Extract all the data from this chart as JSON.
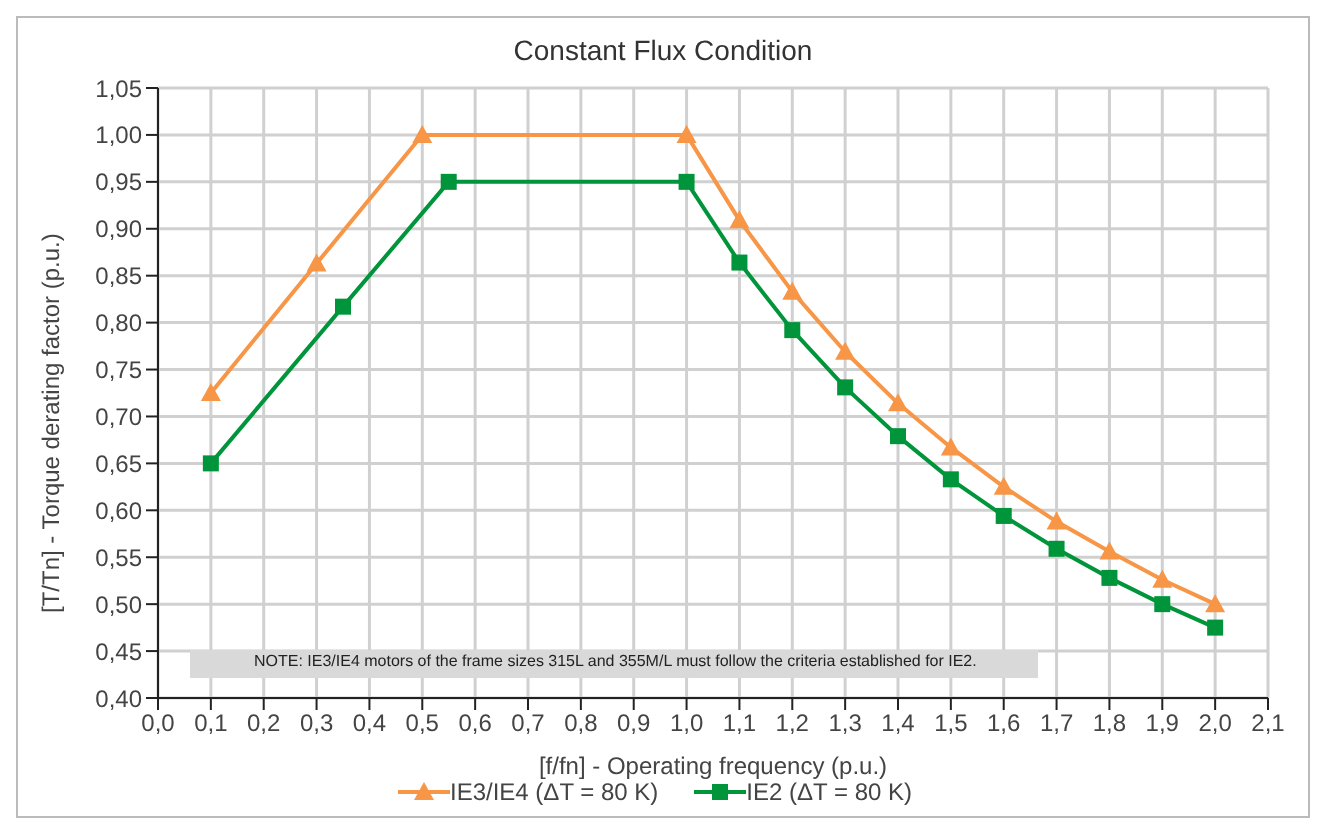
{
  "chart_data": {
    "type": "line",
    "title": "Constant Flux Condition",
    "xlabel": "[f/fn] - Operating frequency (p.u.)",
    "ylabel": "[T/Tn] - Torque derating factor (p.u.)",
    "annotations": [
      "NOTE: IE3/IE4 motors of the frame sizes 315L and 355M/L must follow the criteria established for IE2."
    ],
    "series": [
      {
        "name": "IE3/IE4 (ΔT = 80 K)",
        "color": "#f79646",
        "marker": "triangle",
        "x": [
          0.1,
          0.3,
          0.5,
          1.0,
          1.1,
          1.2,
          1.3,
          1.4,
          1.5,
          1.6,
          1.7,
          1.8,
          1.9,
          2.0
        ],
        "values": [
          0.725,
          0.863,
          1.0,
          1.0,
          0.909,
          0.833,
          0.769,
          0.714,
          0.667,
          0.625,
          0.588,
          0.556,
          0.526,
          0.5
        ]
      },
      {
        "name": "IE2 (ΔT = 80 K)",
        "color": "#00953a",
        "marker": "square",
        "x": [
          0.1,
          0.35,
          0.55,
          1.0,
          1.1,
          1.2,
          1.3,
          1.4,
          1.5,
          1.6,
          1.7,
          1.8,
          1.9,
          2.0
        ],
        "values": [
          0.65,
          0.817,
          0.95,
          0.95,
          0.864,
          0.792,
          0.731,
          0.679,
          0.633,
          0.594,
          0.559,
          0.528,
          0.5,
          0.475
        ]
      }
    ],
    "xlim": [
      0,
      2.1
    ],
    "xticks": [
      {
        "value": 0,
        "label": "0,0"
      },
      {
        "value": 0.1,
        "label": "0,1"
      },
      {
        "value": 0.2,
        "label": "0,2"
      },
      {
        "value": 0.3,
        "label": "0,3"
      },
      {
        "value": 0.4,
        "label": "0,4"
      },
      {
        "value": 0.5,
        "label": "0,5"
      },
      {
        "value": 0.6,
        "label": "0,6"
      },
      {
        "value": 0.7,
        "label": "0,7"
      },
      {
        "value": 0.8,
        "label": "0,8"
      },
      {
        "value": 0.9,
        "label": "0,9"
      },
      {
        "value": 1.0,
        "label": "1,0"
      },
      {
        "value": 1.1,
        "label": "1,1"
      },
      {
        "value": 1.2,
        "label": "1,2"
      },
      {
        "value": 1.3,
        "label": "1,3"
      },
      {
        "value": 1.4,
        "label": "1,4"
      },
      {
        "value": 1.5,
        "label": "1,5"
      },
      {
        "value": 1.6,
        "label": "1,6"
      },
      {
        "value": 1.7,
        "label": "1,7"
      },
      {
        "value": 1.8,
        "label": "1,8"
      },
      {
        "value": 1.9,
        "label": "1,9"
      },
      {
        "value": 2.0,
        "label": "2,0"
      },
      {
        "value": 2.1,
        "label": "2,1"
      }
    ],
    "ylim": [
      0.4,
      1.05
    ],
    "yticks": [
      {
        "value": 0.4,
        "label": "0,40"
      },
      {
        "value": 0.45,
        "label": "0,45"
      },
      {
        "value": 0.5,
        "label": "0,50"
      },
      {
        "value": 0.55,
        "label": "0,55"
      },
      {
        "value": 0.6,
        "label": "0,60"
      },
      {
        "value": 0.65,
        "label": "0,65"
      },
      {
        "value": 0.7,
        "label": "0,70"
      },
      {
        "value": 0.75,
        "label": "0,75"
      },
      {
        "value": 0.8,
        "label": "0,80"
      },
      {
        "value": 0.85,
        "label": "0,85"
      },
      {
        "value": 0.9,
        "label": "0,90"
      },
      {
        "value": 0.95,
        "label": "0,95"
      },
      {
        "value": 1.0,
        "label": "1,00"
      },
      {
        "value": 1.05,
        "label": "1,05"
      }
    ],
    "grid": true,
    "legend": "bottom",
    "line_style": "solid"
  }
}
